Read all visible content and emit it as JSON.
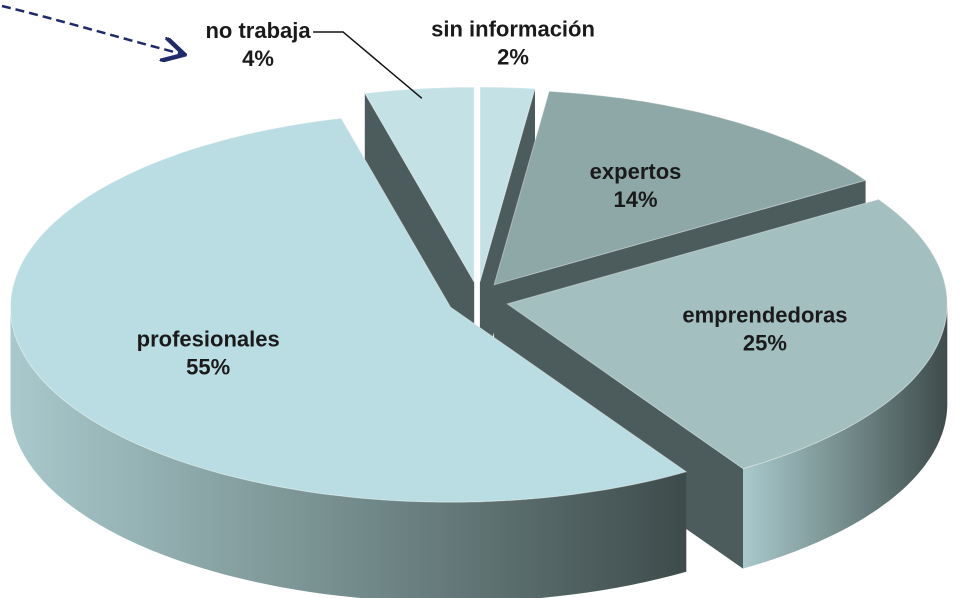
{
  "chart_data": {
    "type": "pie3d",
    "categories": [
      "sin información",
      "expertos",
      "emprendedoras",
      "profesionales",
      "no trabaja"
    ],
    "values": [
      2,
      14,
      25,
      55,
      4
    ],
    "value_labels": [
      "2%",
      "14%",
      "25%",
      "55%",
      "4%"
    ],
    "colors": [
      "#c4e2e6",
      "#8ea8a7",
      "#a3bfbf",
      "#b9dde2",
      "#c4e2e6"
    ],
    "side_color": "#4c5c5c"
  }
}
